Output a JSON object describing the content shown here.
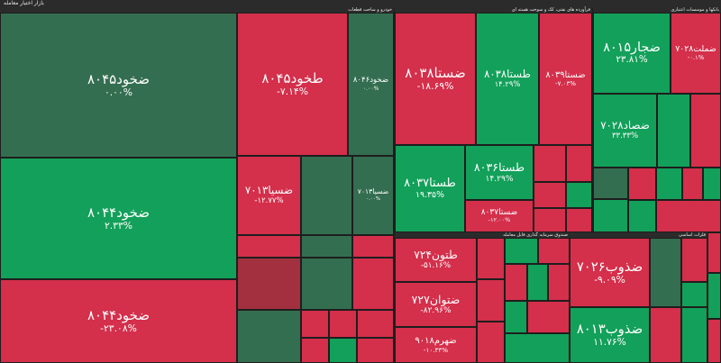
{
  "header": {
    "title": "بازار اختیار معامله"
  },
  "sectors": [
    {
      "name": "خودرو و ساخت قطعات",
      "tiles": [
        {
          "symbol": "ضخود۸۰۴۵",
          "change": "۰.۰۰%"
        },
        {
          "symbol": "ضخود۸۰۴۴",
          "change": "۲.۳۳%"
        },
        {
          "symbol": "ضخود۸۰۴۴",
          "change": "-۲۳.۰۸%"
        },
        {
          "symbol": "طخود۸۰۴۵",
          "change": "-۷.۱۴%"
        },
        {
          "symbol": "ضخود۸۰۴۶",
          "change": "۰.۰۰%"
        },
        {
          "symbol": "ضسیا۷۰۱۳",
          "change": "-۱۲.۷۷%"
        },
        {
          "symbol": "ضسیا۷۰۱۳",
          "change": "۰.۰۰%"
        }
      ]
    },
    {
      "name": "فرآورده های نفتی، کک و سوخت هسته ای",
      "tiles": [
        {
          "symbol": "ضستا۸۰۳۸",
          "change": "-۱۸.۶۹%"
        },
        {
          "symbol": "طستا۸۰۳۸",
          "change": "۱۴.۲۹%"
        },
        {
          "symbol": "ضستا۸۰۳۹",
          "change": "-۷.۰۳%"
        },
        {
          "symbol": "طستا۸۰۳۷",
          "change": "۱۹.۳۵%"
        },
        {
          "symbol": "طستا۸۰۳۶",
          "change": "۱۴.۲۹%"
        },
        {
          "symbol": "ضستا۸۰۳۷",
          "change": "-۱۲.۰۰%"
        }
      ]
    },
    {
      "name": "بانکها و موسسات اعتباری",
      "tiles": [
        {
          "symbol": "ضجار۸۰۱۵",
          "change": "۲۳.۸۱%"
        },
        {
          "symbol": "ضملت۷۰۲۸",
          "change": "-۰.۱%"
        },
        {
          "symbol": "ضصاد۷۰۲۸",
          "change": "۳۳.۳۳%"
        }
      ]
    },
    {
      "name": "صندوق سرمایه گذاری قابل معامله",
      "tiles": [
        {
          "symbol": "طتون۷۲۴",
          "change": "-۵۱.۱۶%"
        },
        {
          "symbol": "ضتوان۷۲۷",
          "change": "-۸۲.۹۶%"
        },
        {
          "symbol": "ضهرم۹۰۱۸",
          "change": "-۱۰.۳۳%"
        }
      ]
    },
    {
      "name": "فلزات اساسی",
      "tiles": [
        {
          "symbol": "ضذوب۷۰۲۶",
          "change": "-۹.۰۹%"
        },
        {
          "symbol": "ضذوب۸۰۱۳",
          "change": "۱۱.۷۶%"
        }
      ]
    }
  ]
}
